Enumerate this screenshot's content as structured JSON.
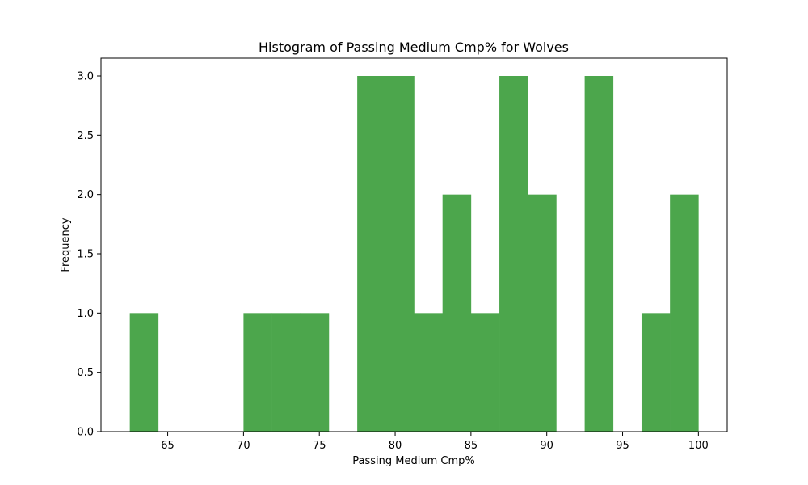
{
  "chart_data": {
    "type": "bar",
    "title": "Histogram of Passing Medium Cmp% for Wolves",
    "xlabel": "Passing Medium Cmp%",
    "ylabel": "Frequency",
    "bar_color": "#4ca64c",
    "xlim": [
      60.6,
      101.9
    ],
    "ylim": [
      0,
      3.15
    ],
    "xticks": [
      {
        "value": 65,
        "label": "65"
      },
      {
        "value": 70,
        "label": "70"
      },
      {
        "value": 75,
        "label": "75"
      },
      {
        "value": 80,
        "label": "80"
      },
      {
        "value": 85,
        "label": "85"
      },
      {
        "value": 90,
        "label": "90"
      },
      {
        "value": 95,
        "label": "95"
      },
      {
        "value": 100,
        "label": "100"
      }
    ],
    "yticks": [
      {
        "value": 0,
        "label": "0.0"
      },
      {
        "value": 0.5,
        "label": "0.5"
      },
      {
        "value": 1.0,
        "label": "1.0"
      },
      {
        "value": 1.5,
        "label": "1.5"
      },
      {
        "value": 2.0,
        "label": "2.0"
      },
      {
        "value": 2.5,
        "label": "2.5"
      },
      {
        "value": 3.0,
        "label": "3.0"
      }
    ],
    "bin_edges": [
      62.5,
      64.375,
      66.25,
      68.125,
      70.0,
      71.875,
      73.75,
      75.625,
      77.5,
      79.375,
      81.25,
      83.125,
      85.0,
      86.875,
      88.75,
      90.625,
      92.5,
      94.375,
      96.25,
      98.125,
      100.0
    ],
    "values": [
      1,
      0,
      0,
      0,
      1,
      1,
      1,
      0,
      3,
      3,
      1,
      2,
      1,
      3,
      2,
      0,
      3,
      0,
      1,
      2
    ]
  }
}
